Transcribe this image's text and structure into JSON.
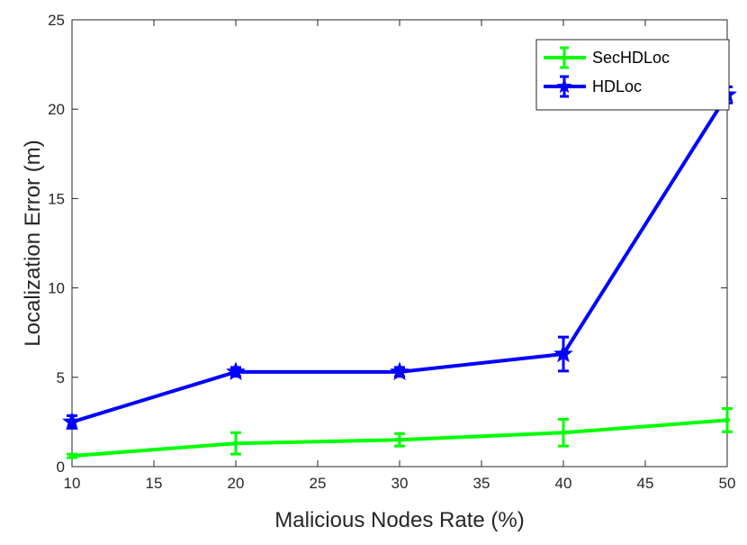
{
  "chart_data": {
    "type": "line",
    "title": "",
    "xlabel": "Malicious Nodes Rate (%)",
    "ylabel": "Localization Error (m)",
    "xlim": [
      10,
      50
    ],
    "ylim": [
      0,
      25
    ],
    "xticks": [
      10,
      15,
      20,
      25,
      30,
      35,
      40,
      45,
      50
    ],
    "yticks": [
      0,
      5,
      10,
      15,
      20,
      25
    ],
    "grid": false,
    "legend_position": "top-right",
    "x": [
      10,
      20,
      30,
      40,
      50
    ],
    "series": [
      {
        "name": "SecHDLoc",
        "color": "#00ff00",
        "marker": "point",
        "values": [
          0.6,
          1.3,
          1.5,
          1.9,
          2.6
        ],
        "errors": [
          0.1,
          0.6,
          0.35,
          0.75,
          0.65
        ]
      },
      {
        "name": "HDLoc",
        "color": "#0000ff",
        "marker": "star",
        "values": [
          2.5,
          5.3,
          5.3,
          6.3,
          20.8
        ],
        "errors": [
          0.35,
          0.25,
          0.25,
          0.95,
          0.45
        ]
      }
    ]
  }
}
